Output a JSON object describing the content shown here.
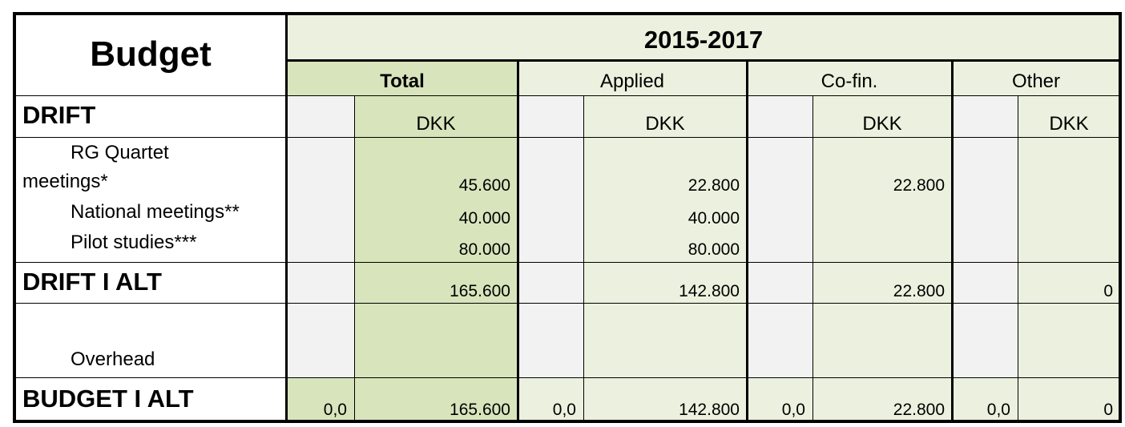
{
  "header": {
    "title": "Budget",
    "period": "2015-2017",
    "columns": [
      {
        "label": "Total",
        "unit": "DKK"
      },
      {
        "label": "Applied",
        "unit": "DKK"
      },
      {
        "label": "Co-fin.",
        "unit": "DKK"
      },
      {
        "label": "Other",
        "unit": "DKK"
      }
    ]
  },
  "sections": {
    "drift": "DRIFT",
    "items_line1": [
      "RG Quartet",
      "National meetings**",
      "Pilot studies***"
    ],
    "items_line1b": "meetings*",
    "drift_total": "DRIFT I ALT",
    "overhead": "Overhead",
    "budget_total": "BUDGET I ALT"
  },
  "rows": {
    "rg_quartet": {
      "total": "45.600",
      "applied": "22.800",
      "cofin": "22.800",
      "other": ""
    },
    "national": {
      "total": "40.000",
      "applied": "40.000",
      "cofin": "",
      "other": ""
    },
    "pilot": {
      "total": "80.000",
      "applied": "80.000",
      "cofin": "",
      "other": ""
    },
    "drift_ialt": {
      "total": "165.600",
      "applied": "142.800",
      "cofin": "22.800",
      "other": "0"
    },
    "budget_ialt": {
      "total_pct": "0,0",
      "total": "165.600",
      "applied_pct": "0,0",
      "applied": "142.800",
      "cofin_pct": "0,0",
      "cofin": "22.800",
      "other_pct": "0,0",
      "other": "0"
    }
  },
  "colors": {
    "header_green": "#ebf1de",
    "total_green": "#d8e4bc",
    "grey": "#f2f2f2"
  }
}
